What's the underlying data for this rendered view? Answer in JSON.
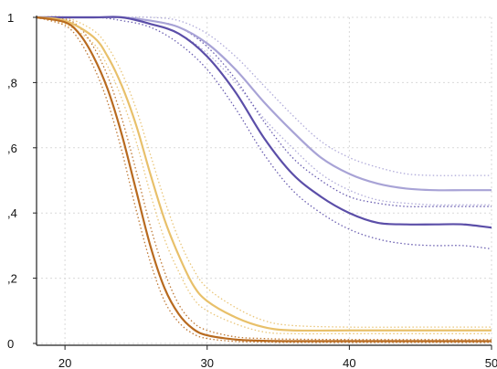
{
  "chart_data": {
    "type": "line",
    "title": "",
    "xlabel": "",
    "ylabel": "",
    "xlim": [
      18,
      50
    ],
    "ylim": [
      0,
      1
    ],
    "grid": true,
    "x_ticks": [
      {
        "value": 20,
        "label": "20"
      },
      {
        "value": 30,
        "label": "30"
      },
      {
        "value": 40,
        "label": "40"
      },
      {
        "value": 50,
        "label": "50"
      }
    ],
    "y_ticks": [
      {
        "value": 0,
        "label": "0"
      },
      {
        "value": 0.2,
        "label": ",2"
      },
      {
        "value": 0.4,
        "label": ",4"
      },
      {
        "value": 0.6,
        "label": ",6"
      },
      {
        "value": 0.8,
        "label": ",8"
      },
      {
        "value": 1,
        "label": "1"
      }
    ],
    "series": [
      {
        "color": "#a8a3d6",
        "x": [
          18,
          22,
          24,
          26,
          28,
          30,
          32,
          34,
          36,
          38,
          40,
          42,
          44,
          46,
          48,
          50
        ],
        "values": [
          1.0,
          1.0,
          1.0,
          0.99,
          0.97,
          0.92,
          0.84,
          0.74,
          0.65,
          0.57,
          0.52,
          0.49,
          0.475,
          0.47,
          0.47,
          0.47
        ],
        "ci_upper": [
          1.0,
          1.0,
          1.0,
          1.0,
          0.99,
          0.95,
          0.88,
          0.79,
          0.7,
          0.62,
          0.57,
          0.54,
          0.52,
          0.515,
          0.515,
          0.515
        ],
        "ci_lower": [
          1.0,
          1.0,
          1.0,
          0.98,
          0.95,
          0.89,
          0.8,
          0.69,
          0.6,
          0.52,
          0.47,
          0.44,
          0.43,
          0.425,
          0.425,
          0.425
        ]
      },
      {
        "color": "#5b4ea8",
        "x": [
          18,
          22,
          24,
          26,
          28,
          30,
          32,
          34,
          36,
          38,
          40,
          42,
          44,
          46,
          48,
          50
        ],
        "values": [
          1.0,
          1.0,
          1.0,
          0.98,
          0.95,
          0.88,
          0.77,
          0.63,
          0.52,
          0.45,
          0.4,
          0.37,
          0.365,
          0.365,
          0.365,
          0.355
        ],
        "ci_upper": [
          1.0,
          1.0,
          1.0,
          0.99,
          0.97,
          0.91,
          0.81,
          0.68,
          0.57,
          0.5,
          0.45,
          0.43,
          0.42,
          0.42,
          0.42,
          0.42
        ],
        "ci_lower": [
          1.0,
          1.0,
          0.99,
          0.97,
          0.92,
          0.84,
          0.72,
          0.58,
          0.47,
          0.4,
          0.35,
          0.32,
          0.305,
          0.3,
          0.3,
          0.29
        ]
      },
      {
        "color": "#e8c06a",
        "x": [
          18,
          20,
          22,
          23,
          24,
          25,
          26,
          27,
          28,
          29,
          30,
          32,
          34,
          36,
          40,
          45,
          50
        ],
        "values": [
          1.0,
          0.99,
          0.94,
          0.88,
          0.79,
          0.67,
          0.52,
          0.38,
          0.27,
          0.18,
          0.13,
          0.08,
          0.05,
          0.04,
          0.04,
          0.04,
          0.04
        ],
        "ci_upper": [
          1.0,
          1.0,
          0.96,
          0.91,
          0.83,
          0.72,
          0.58,
          0.44,
          0.32,
          0.23,
          0.17,
          0.11,
          0.07,
          0.055,
          0.05,
          0.05,
          0.05
        ],
        "ci_lower": [
          1.0,
          0.98,
          0.92,
          0.85,
          0.75,
          0.62,
          0.46,
          0.32,
          0.22,
          0.14,
          0.1,
          0.06,
          0.035,
          0.03,
          0.03,
          0.03,
          0.03
        ]
      },
      {
        "color": "#b86a1f",
        "x": [
          18,
          20,
          21,
          22,
          23,
          24,
          25,
          26,
          27,
          28,
          29,
          30,
          32,
          34,
          36,
          40,
          45,
          50
        ],
        "values": [
          1.0,
          0.985,
          0.95,
          0.88,
          0.78,
          0.64,
          0.47,
          0.3,
          0.17,
          0.09,
          0.045,
          0.025,
          0.012,
          0.008,
          0.007,
          0.007,
          0.007,
          0.007
        ],
        "ci_upper": [
          1.0,
          0.995,
          0.97,
          0.91,
          0.82,
          0.69,
          0.53,
          0.36,
          0.22,
          0.12,
          0.065,
          0.04,
          0.02,
          0.015,
          0.013,
          0.012,
          0.012,
          0.012
        ],
        "ci_lower": [
          1.0,
          0.975,
          0.93,
          0.85,
          0.74,
          0.59,
          0.41,
          0.25,
          0.13,
          0.065,
          0.03,
          0.015,
          0.006,
          0.004,
          0.003,
          0.003,
          0.003,
          0.003
        ]
      }
    ]
  }
}
